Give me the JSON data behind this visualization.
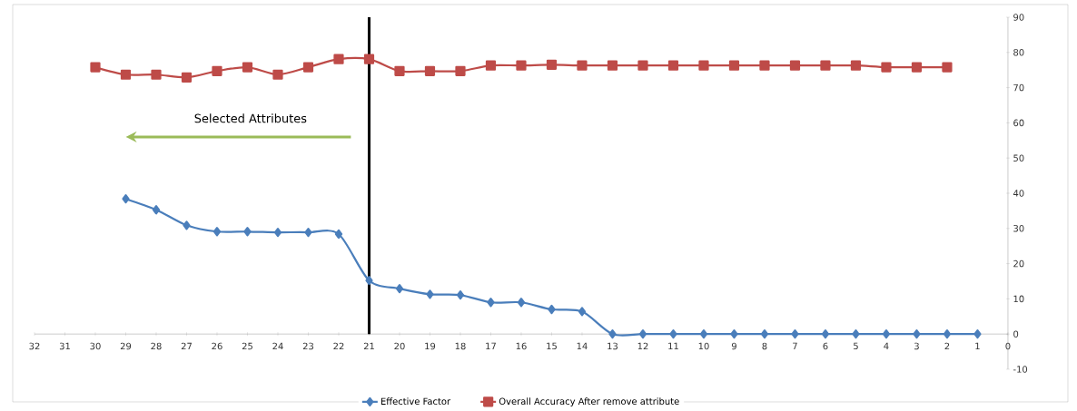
{
  "chart_data": {
    "type": "line",
    "x": [
      29,
      28,
      27,
      26,
      25,
      24,
      23,
      22,
      21,
      20,
      19,
      18,
      17,
      16,
      15,
      14,
      13,
      12,
      11,
      10,
      9,
      8,
      7,
      6,
      5,
      4,
      3,
      2,
      1
    ],
    "series": [
      {
        "name": "Effective Factor",
        "color": "#4a7ebb",
        "marker": "diamond",
        "values": [
          38.4,
          35.3,
          30.9,
          29.1,
          29.1,
          28.9,
          28.9,
          28.4,
          15.2,
          12.9,
          11.3,
          11.1,
          9.0,
          9.0,
          7.0,
          6.4,
          0,
          0,
          0,
          0,
          0,
          0,
          0,
          0,
          0,
          0,
          0,
          0,
          0
        ]
      },
      {
        "name": "Overall Accuracy After remove attribute",
        "color": "#be4b48",
        "marker": "square",
        "x": [
          30,
          29,
          28,
          27,
          26,
          25,
          24,
          23,
          22,
          21,
          20,
          19,
          18,
          17,
          16,
          15,
          14,
          13,
          12,
          11,
          10,
          9,
          8,
          7,
          6,
          5,
          4,
          3,
          2
        ],
        "values": [
          75.8,
          73.7,
          73.7,
          72.9,
          74.7,
          75.8,
          73.7,
          75.8,
          78.1,
          78.1,
          74.7,
          74.7,
          74.7,
          76.3,
          76.3,
          76.5,
          76.3,
          76.3,
          76.3,
          76.3,
          76.3,
          76.3,
          76.3,
          76.3,
          76.3,
          76.3,
          75.8,
          75.8,
          75.8
        ]
      }
    ],
    "xlim": [
      32,
      0
    ],
    "xticks": [
      32,
      31,
      30,
      29,
      28,
      27,
      26,
      25,
      24,
      23,
      22,
      21,
      20,
      19,
      18,
      17,
      16,
      15,
      14,
      13,
      12,
      11,
      10,
      9,
      8,
      7,
      6,
      5,
      4,
      3,
      2,
      1,
      0
    ],
    "ylim": [
      -10,
      90
    ],
    "yticks": [
      -10,
      0,
      10,
      20,
      30,
      40,
      50,
      60,
      70,
      80,
      90
    ],
    "ref_lines": [
      {
        "axis": "x",
        "value": 21,
        "color": "#000000"
      }
    ],
    "annotations": [
      "Selected Attributes"
    ],
    "grid": false,
    "legend": "bottom",
    "line_style": "solid"
  }
}
